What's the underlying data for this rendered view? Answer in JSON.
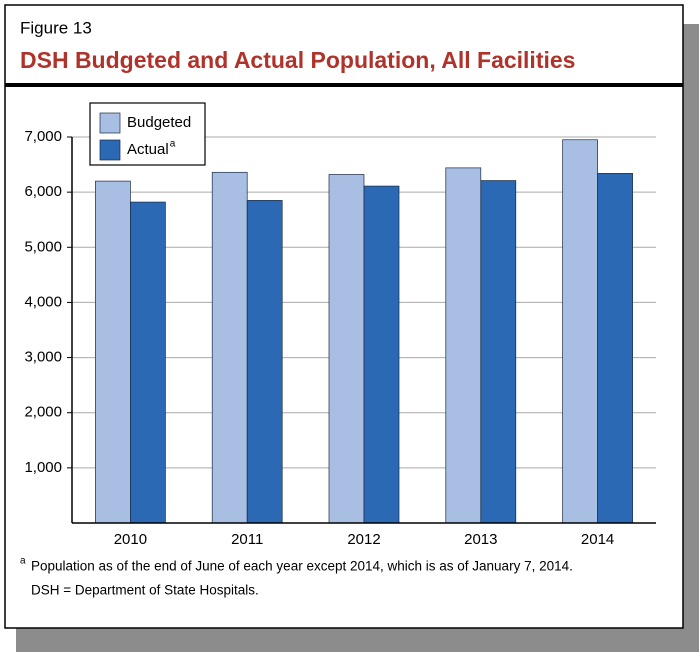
{
  "chart_data": {
    "type": "bar",
    "figure_label": "Figure 13",
    "title": "DSH Budgeted and Actual Population, All Facilities",
    "categories": [
      "2010",
      "2011",
      "2012",
      "2013",
      "2014"
    ],
    "series": [
      {
        "name": "Budgeted",
        "color": "#a8bfe3",
        "values": [
          6200,
          6360,
          6320,
          6440,
          6950
        ]
      },
      {
        "name": "Actual",
        "color": "#2b69b5",
        "values": [
          5820,
          5850,
          6110,
          6210,
          6340
        ]
      }
    ],
    "footnote_marker": "a",
    "footnotes": [
      "Population as of the end of June of each year except 2014, which is as of January 7, 2014.",
      "DSH = Department of State Hospitals."
    ],
    "ylim": [
      0,
      7000
    ],
    "yticks": [
      {
        "value": 1000,
        "label": "1,000"
      },
      {
        "value": 2000,
        "label": "2,000"
      },
      {
        "value": 3000,
        "label": "3,000"
      },
      {
        "value": 4000,
        "label": "4,000"
      },
      {
        "value": 5000,
        "label": "5,000"
      },
      {
        "value": 6000,
        "label": "6,000"
      },
      {
        "value": 7000,
        "label": "7,000"
      }
    ],
    "grid": true
  }
}
